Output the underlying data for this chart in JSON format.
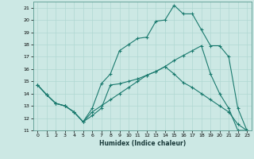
{
  "title": "",
  "xlabel": "Humidex (Indice chaleur)",
  "bg_color": "#cce8e4",
  "grid_color": "#b0d8d2",
  "line_color": "#1a7a6e",
  "xlim": [
    -0.5,
    23.5
  ],
  "ylim": [
    11,
    21.5
  ],
  "yticks": [
    11,
    12,
    13,
    14,
    15,
    16,
    17,
    18,
    19,
    20,
    21
  ],
  "xticks": [
    0,
    1,
    2,
    3,
    4,
    5,
    6,
    7,
    8,
    9,
    10,
    11,
    12,
    13,
    14,
    15,
    16,
    17,
    18,
    19,
    20,
    21,
    22,
    23
  ],
  "line1_x": [
    0,
    1,
    2,
    3,
    4,
    5,
    6,
    7,
    8,
    9,
    10,
    11,
    12,
    13,
    14,
    15,
    16,
    17,
    18,
    19,
    20,
    21,
    22,
    23
  ],
  "line1_y": [
    14.7,
    13.9,
    13.2,
    13.0,
    12.5,
    11.7,
    12.2,
    12.8,
    14.7,
    14.8,
    15.0,
    15.2,
    15.5,
    15.8,
    16.2,
    16.7,
    17.1,
    17.5,
    17.9,
    15.6,
    14.0,
    12.8,
    11.0,
    11.0
  ],
  "line2_x": [
    0,
    1,
    2,
    3,
    4,
    5,
    6,
    7,
    8,
    9,
    10,
    11,
    12,
    13,
    14,
    15,
    16,
    17,
    18,
    19,
    20,
    21,
    22,
    23
  ],
  "line2_y": [
    14.7,
    13.9,
    13.2,
    13.0,
    12.5,
    11.7,
    12.8,
    14.8,
    15.6,
    17.5,
    18.0,
    18.5,
    18.6,
    19.9,
    20.0,
    21.2,
    20.5,
    20.5,
    19.2,
    17.9,
    17.9,
    17.0,
    12.8,
    11.0
  ],
  "line3_x": [
    0,
    1,
    2,
    3,
    4,
    5,
    6,
    7,
    8,
    9,
    10,
    11,
    12,
    13,
    14,
    15,
    16,
    17,
    18,
    19,
    20,
    21,
    22,
    23
  ],
  "line3_y": [
    14.7,
    13.9,
    13.2,
    13.0,
    12.5,
    11.7,
    12.5,
    13.0,
    13.5,
    14.0,
    14.5,
    15.0,
    15.5,
    15.8,
    16.2,
    15.6,
    14.9,
    14.5,
    14.0,
    13.5,
    13.0,
    12.5,
    11.5,
    11.0
  ]
}
